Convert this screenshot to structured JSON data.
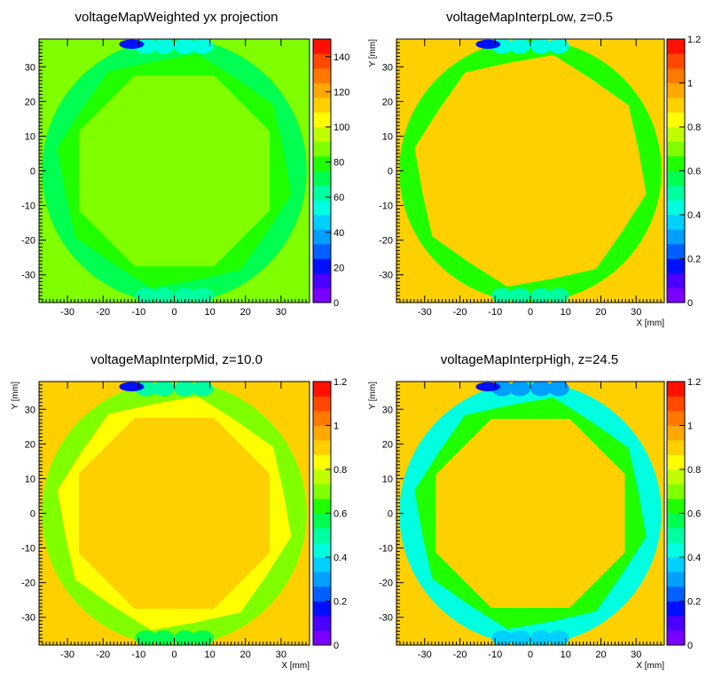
{
  "chart_data": [
    {
      "type": "heatmap",
      "title": "voltageMapWeighted yx projection",
      "xlabel": "",
      "ylabel": "",
      "xlim": [
        -38,
        38
      ],
      "ylim": [
        -38,
        38
      ],
      "xticks": [
        -30,
        -20,
        -10,
        0,
        10,
        20,
        30
      ],
      "yticks": [
        -30,
        -20,
        -10,
        0,
        10,
        20,
        30
      ],
      "zlim": [
        0,
        150
      ],
      "zticks": [
        0,
        20,
        40,
        60,
        80,
        100,
        120,
        140
      ],
      "outside_value": 88,
      "disk_radius": 37.2,
      "center_value": 88,
      "ring_value": 78,
      "edge_value": 72
    },
    {
      "type": "heatmap",
      "title": "voltageMapInterpLow, z=0.5",
      "xlabel": "X [mm]",
      "ylabel": "Y [mm]",
      "xlim": [
        -38,
        38
      ],
      "ylim": [
        -38,
        38
      ],
      "xticks": [
        -30,
        -20,
        -10,
        0,
        10,
        20,
        30
      ],
      "yticks": [
        -30,
        -20,
        -10,
        0,
        10,
        20,
        30
      ],
      "zlim": [
        0,
        1.2
      ],
      "zticks": [
        0,
        0.2,
        0.4,
        0.6,
        0.8,
        1,
        1.2
      ],
      "outside_value": 0.92,
      "disk_radius": 37.2,
      "center_value": 0.92,
      "ring_value": 0.92,
      "edge_value": 0.6
    },
    {
      "type": "heatmap",
      "title": "voltageMapInterpMid, z=10.0",
      "xlabel": "X [mm]",
      "ylabel": "Y [mm]",
      "xlim": [
        -38,
        38
      ],
      "ylim": [
        -38,
        38
      ],
      "xticks": [
        -30,
        -20,
        -10,
        0,
        10,
        20,
        30
      ],
      "yticks": [
        -30,
        -20,
        -10,
        0,
        10,
        20,
        30
      ],
      "zlim": [
        0,
        1.2
      ],
      "zticks": [
        0,
        0.2,
        0.4,
        0.6,
        0.8,
        1,
        1.2
      ],
      "outside_value": 0.92,
      "disk_radius": 37.2,
      "center_value": 0.92,
      "ring_value": 0.82,
      "edge_value": 0.7
    },
    {
      "type": "heatmap",
      "title": "voltageMapInterpHigh, z=24.5",
      "xlabel": "X [mm]",
      "ylabel": "Y [mm]",
      "xlim": [
        -38,
        38
      ],
      "ylim": [
        -38,
        38
      ],
      "xticks": [
        -30,
        -20,
        -10,
        0,
        10,
        20,
        30
      ],
      "yticks": [
        -30,
        -20,
        -10,
        0,
        10,
        20,
        30
      ],
      "zlim": [
        0,
        1.2
      ],
      "zticks": [
        0,
        0.2,
        0.4,
        0.6,
        0.8,
        1,
        1.2
      ],
      "outside_value": 0.92,
      "disk_radius": 37.2,
      "center_value": 0.92,
      "ring_value": 0.62,
      "edge_value": 0.4
    }
  ],
  "palette": [
    "#7a00ff",
    "#4a00ff",
    "#0010ff",
    "#0060ff",
    "#00a0ff",
    "#00d0ff",
    "#00ffe0",
    "#00ffa0",
    "#00ff50",
    "#20ff00",
    "#80ff00",
    "#c0ff00",
    "#ffff00",
    "#ffd000",
    "#ffa800",
    "#ff7800",
    "#ff4800",
    "#ff1000"
  ]
}
